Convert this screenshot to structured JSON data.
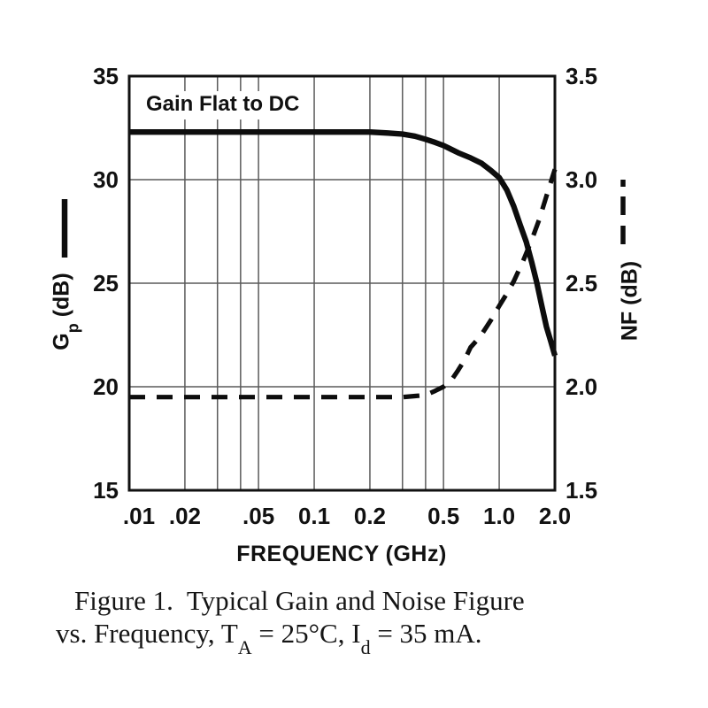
{
  "colors": {
    "background": "#ffffff",
    "ink": "#0d0d0d",
    "grid": "#5a5a5a"
  },
  "chart_data": {
    "type": "line",
    "title": "",
    "annotation": "Gain Flat to DC",
    "xlabel": "FREQUENCY (GHz)",
    "x_scale": "log",
    "x_range": [
      0.01,
      2.0
    ],
    "grid": {
      "vertical_frequencies": [
        0.01,
        0.02,
        0.03,
        0.04,
        0.05,
        0.1,
        0.2,
        0.3,
        0.4,
        0.5,
        1.0,
        2.0
      ],
      "horizontal_left_values": [
        15,
        20,
        25,
        30,
        35
      ]
    },
    "x_axis": {
      "ticks": [
        {
          "label": ".01",
          "f": 0.01,
          "dx": 11
        },
        {
          "label": ".02",
          "f": 0.02,
          "dx": 0
        },
        {
          "label": ".05",
          "f": 0.05,
          "dx": 0
        },
        {
          "label": "0.1",
          "f": 0.1,
          "dx": 0
        },
        {
          "label": "0.2",
          "f": 0.2,
          "dx": 0
        },
        {
          "label": "0.5",
          "f": 0.5,
          "dx": 0
        },
        {
          "label": "1.0",
          "f": 1.0,
          "dx": 0
        },
        {
          "label": "2.0",
          "f": 2.0,
          "dx": 0
        }
      ]
    },
    "left_axis": {
      "title_main": "G",
      "title_sub": "p",
      "title_rest": " (dB)",
      "ylim": [
        15,
        35
      ],
      "ticks": [
        {
          "label": "35",
          "value": 35
        },
        {
          "label": "30",
          "value": 30
        },
        {
          "label": "25",
          "value": 25
        },
        {
          "label": "20",
          "value": 20
        },
        {
          "label": "15",
          "value": 15
        }
      ]
    },
    "right_axis": {
      "title": "NF (dB)",
      "ylim": [
        1.5,
        3.5
      ],
      "ticks": [
        {
          "label": "3.5",
          "value": 3.5
        },
        {
          "label": "3.0",
          "value": 3.0
        },
        {
          "label": "2.5",
          "value": 2.5
        },
        {
          "label": "2.0",
          "value": 2.0
        },
        {
          "label": "1.5",
          "value": 1.5
        }
      ]
    },
    "series": [
      {
        "name": "Gp (dB)",
        "style": "solid",
        "axis": "left",
        "points": [
          [
            0.01,
            32.3
          ],
          [
            0.02,
            32.3
          ],
          [
            0.05,
            32.3
          ],
          [
            0.1,
            32.3
          ],
          [
            0.15,
            32.3
          ],
          [
            0.2,
            32.3
          ],
          [
            0.25,
            32.25
          ],
          [
            0.3,
            32.2
          ],
          [
            0.35,
            32.1
          ],
          [
            0.4,
            31.95
          ],
          [
            0.45,
            31.8
          ],
          [
            0.5,
            31.65
          ],
          [
            0.6,
            31.3
          ],
          [
            0.7,
            31.05
          ],
          [
            0.8,
            30.8
          ],
          [
            0.9,
            30.45
          ],
          [
            1.0,
            30.1
          ],
          [
            1.1,
            29.5
          ],
          [
            1.2,
            28.7
          ],
          [
            1.3,
            27.8
          ],
          [
            1.4,
            27.0
          ],
          [
            1.5,
            26.0
          ],
          [
            1.6,
            25.0
          ],
          [
            1.7,
            23.9
          ],
          [
            1.8,
            22.9
          ],
          [
            1.9,
            22.2
          ],
          [
            2.0,
            21.5
          ]
        ]
      },
      {
        "name": "NF (dB)",
        "style": "dashed",
        "axis": "right",
        "points": [
          [
            0.01,
            1.95
          ],
          [
            0.02,
            1.95
          ],
          [
            0.05,
            1.95
          ],
          [
            0.1,
            1.95
          ],
          [
            0.2,
            1.95
          ],
          [
            0.3,
            1.95
          ],
          [
            0.35,
            1.955
          ],
          [
            0.4,
            1.96
          ],
          [
            0.45,
            1.98
          ],
          [
            0.5,
            2.0
          ],
          [
            0.55,
            2.03
          ],
          [
            0.6,
            2.08
          ],
          [
            0.65,
            2.13
          ],
          [
            0.7,
            2.19
          ],
          [
            0.75,
            2.22
          ],
          [
            0.8,
            2.25
          ],
          [
            0.9,
            2.32
          ],
          [
            1.0,
            2.39
          ],
          [
            1.1,
            2.45
          ],
          [
            1.2,
            2.51
          ],
          [
            1.35,
            2.61
          ],
          [
            1.5,
            2.71
          ],
          [
            1.65,
            2.81
          ],
          [
            1.8,
            2.92
          ],
          [
            2.0,
            3.05
          ]
        ]
      }
    ],
    "legend": [
      {
        "series": "Gp (dB)",
        "style": "solid",
        "position": "left-margin"
      },
      {
        "series": "NF (dB)",
        "style": "dashed",
        "position": "right-margin"
      }
    ]
  },
  "caption": {
    "line1": "Figure 1.  Typical Gain and Noise Figure",
    "line2_pre": "vs. Frequency, T",
    "line2_sub1": "A",
    "line2_mid": " = 25°C, I",
    "line2_sub2": "d",
    "line2_post": " = 35 mA."
  }
}
